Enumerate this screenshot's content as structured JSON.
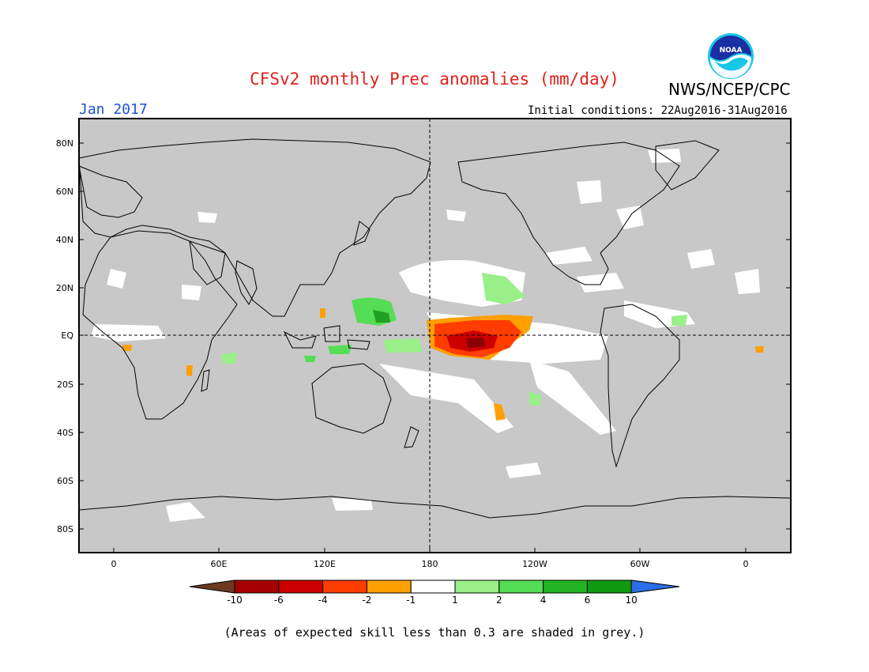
{
  "header": {
    "title": "CFSv2 monthly Prec anomalies (mm/day)",
    "month": "Jan 2017",
    "initial_conditions": "Initial conditions: 22Aug2016-31Aug2016",
    "agency": "NWS/NCEP/CPC",
    "logo_text": "NOAA"
  },
  "colors": {
    "title": "#e0201a",
    "month": "#1f4fd8",
    "ocean_grey": "#c8c8c8",
    "land_line": "#000000"
  },
  "axes": {
    "lat_labels": [
      "80N",
      "60N",
      "40N",
      "20N",
      "EQ",
      "20S",
      "40S",
      "60S",
      "80S"
    ],
    "lon_labels": [
      "0",
      "60E",
      "120E",
      "180",
      "120W",
      "60W",
      "0"
    ]
  },
  "colorbar": {
    "labels": [
      "-10",
      "-6",
      "-4",
      "-2",
      "-1",
      "1",
      "2",
      "4",
      "6",
      "10"
    ],
    "colors": [
      "#6b3a1e",
      "#a50000",
      "#cc0000",
      "#ff3d00",
      "#ff9f00",
      "#ffffff",
      "#99ef88",
      "#55dd55",
      "#22b422",
      "#109a10",
      "#2b6ee8"
    ]
  },
  "footnote": "(Areas of expected skill less than 0.3 are shaded in grey.)"
}
